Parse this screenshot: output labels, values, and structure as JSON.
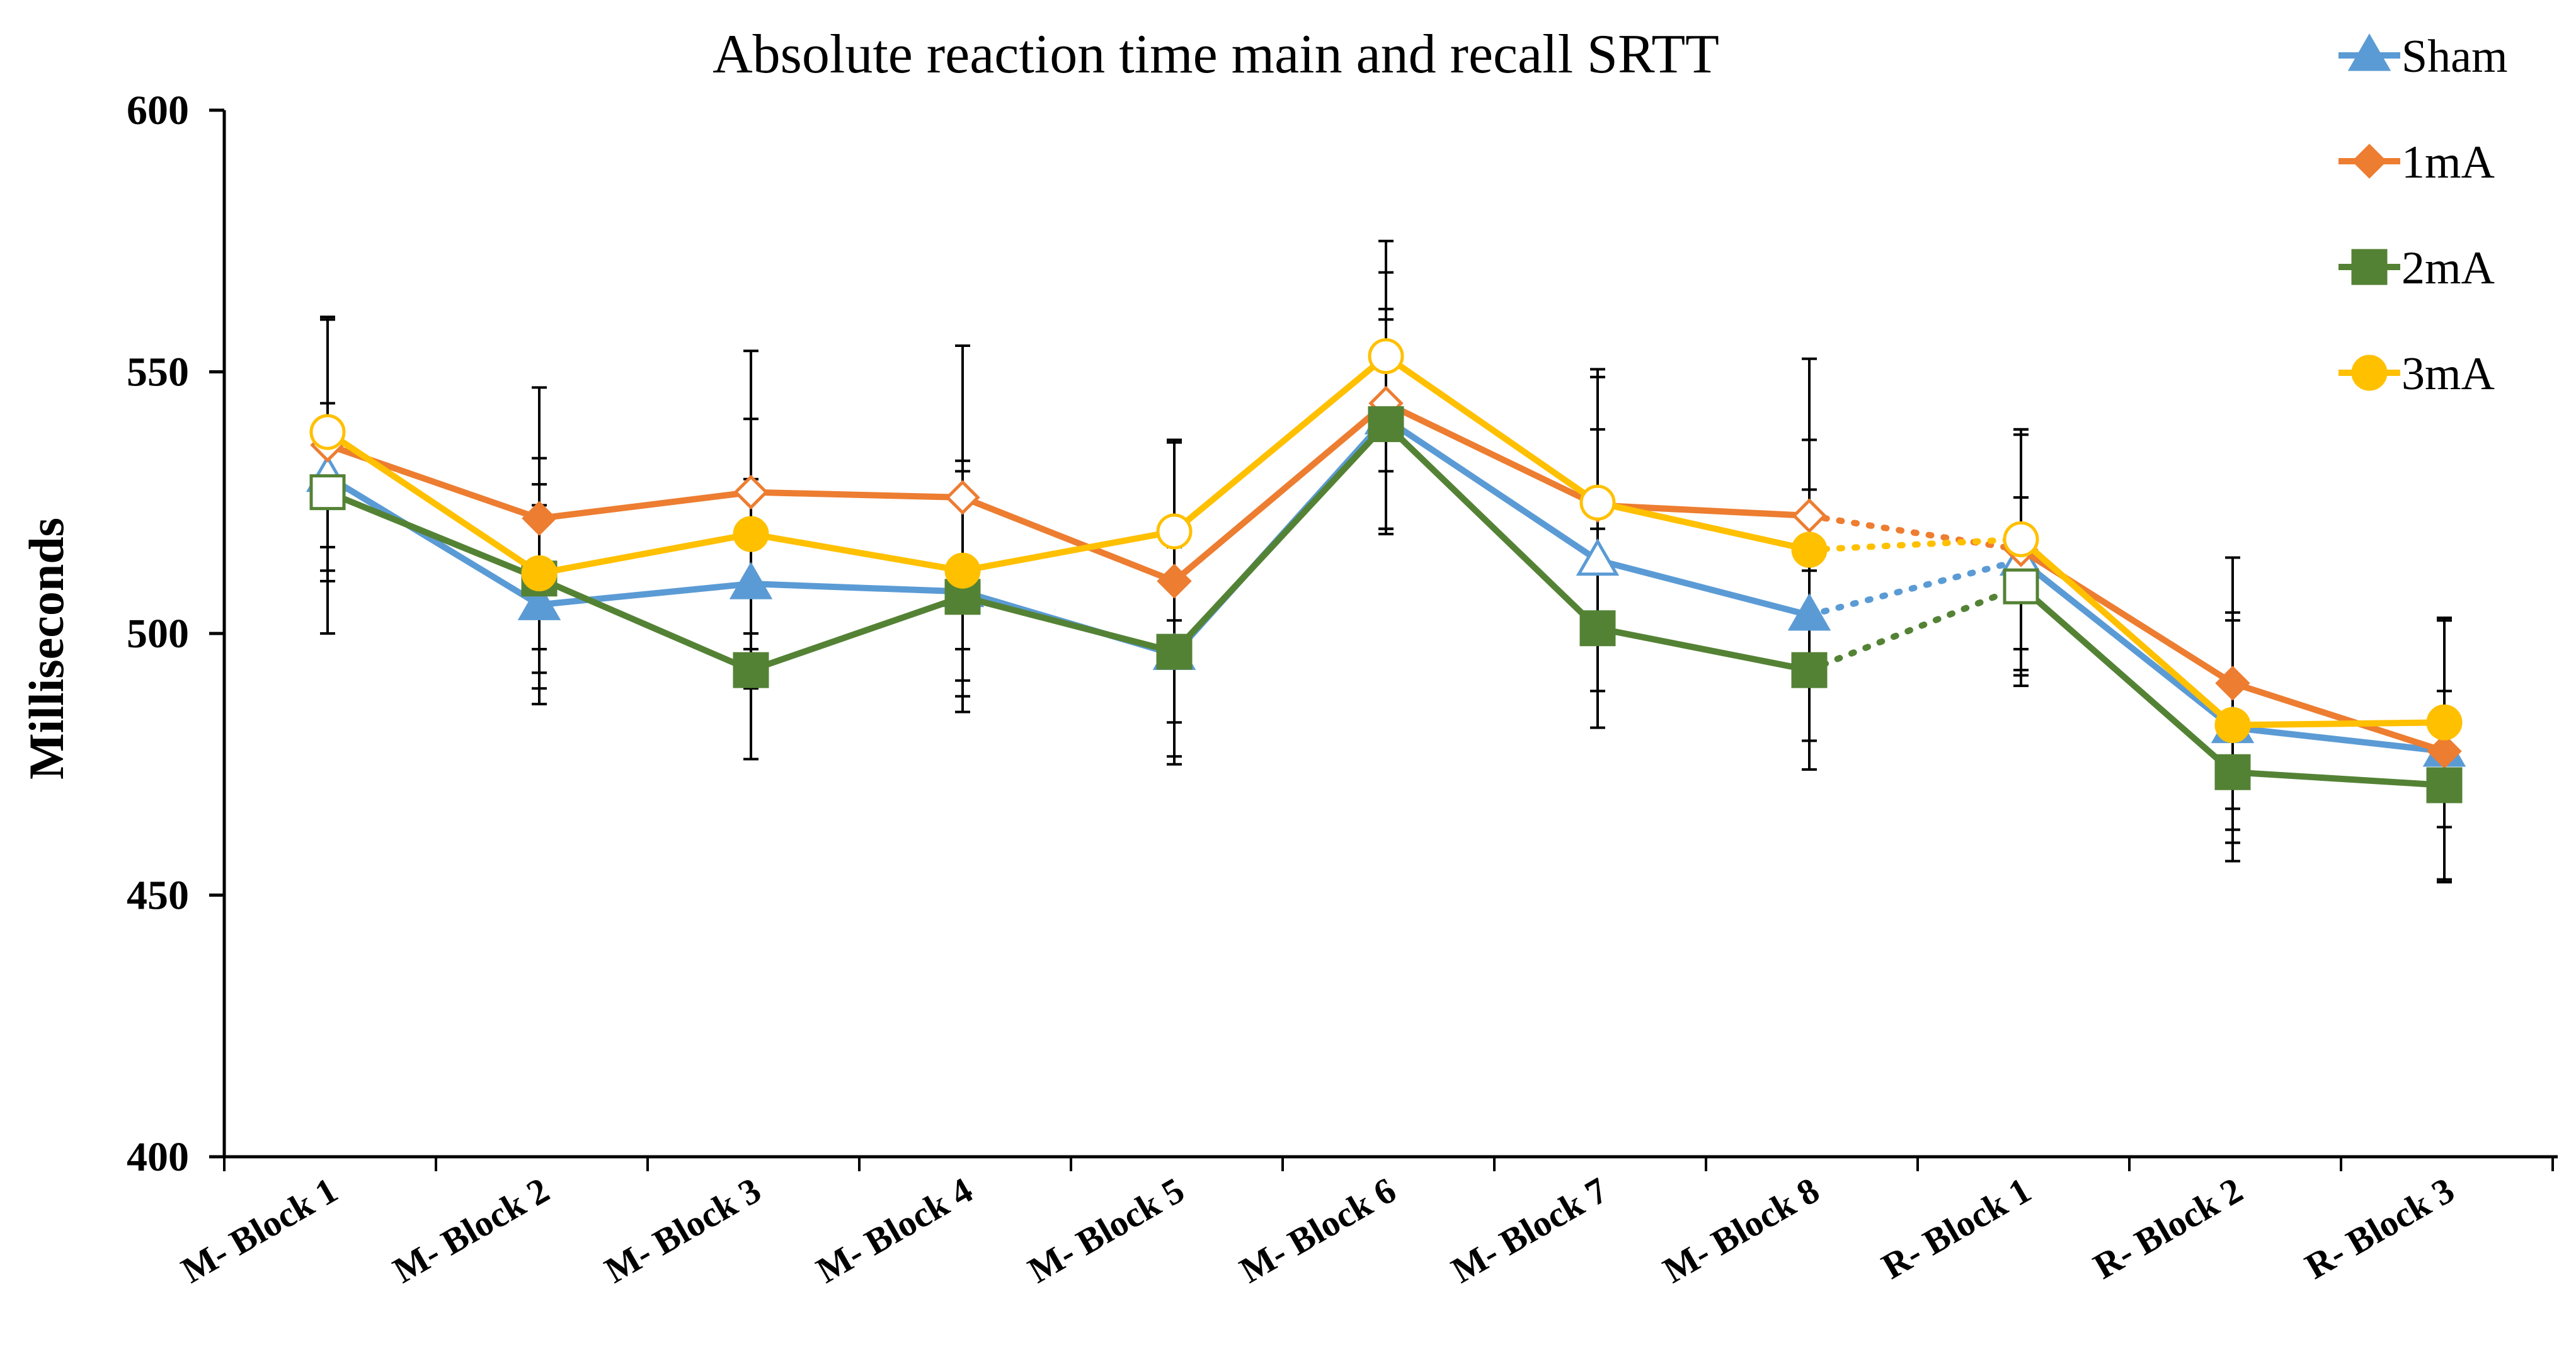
{
  "chart_data": {
    "type": "line",
    "title": "Absolute reaction time main and recall SRTT",
    "xlabel": "",
    "ylabel": "Milliseconds",
    "ylim": [
      400,
      600
    ],
    "yticks": [
      "400",
      "450",
      "500",
      "550",
      "600"
    ],
    "categories": [
      "M- Block 1",
      "M- Block 2",
      "M- Block 3",
      "M- Block 4",
      "M- Block 5",
      "M- Block 6",
      "M- Block 7",
      "M- Block 8",
      "R- Block 1",
      "R- Block 2",
      "R- Block 3"
    ],
    "grid": false,
    "legend_position": "top-right",
    "gap_after_category": "M- Block 8",
    "series": [
      {
        "name": "Sham",
        "color": "#5B9BD5",
        "marker": "triangle",
        "values": [
          530,
          505.5,
          509.5,
          508,
          496,
          541,
          514,
          503.5,
          514,
          482,
          477.5
        ],
        "error": [
          30,
          19,
          20,
          23,
          21,
          21,
          25,
          24,
          24,
          22,
          25
        ],
        "hollow_points": [
          0,
          6,
          8
        ]
      },
      {
        "name": "1mA",
        "color": "#ED7D31",
        "marker": "diamond",
        "values": [
          536,
          522,
          527,
          526,
          510,
          544,
          524.5,
          522.5,
          516,
          490.5,
          477.5
        ],
        "error": [
          24,
          25,
          27,
          29,
          27,
          25,
          26,
          30,
          23,
          24,
          25
        ],
        "hollow_points": [
          0,
          2,
          3,
          5,
          6,
          7,
          8
        ]
      },
      {
        "name": "2mA",
        "color": "#548235",
        "marker": "square",
        "values": [
          527,
          510.5,
          493,
          507,
          496.5,
          540,
          501,
          493,
          509,
          473.5,
          471
        ],
        "error": [
          17,
          18,
          17,
          19,
          20,
          20,
          19,
          19,
          17,
          17,
          18
        ],
        "hollow_points": [
          0,
          8
        ]
      },
      {
        "name": "3mA",
        "color": "#FFC000",
        "marker": "circle",
        "values": [
          538.5,
          511.5,
          519,
          512,
          519.5,
          553,
          525,
          516,
          518,
          482.5,
          483
        ],
        "error": [
          22,
          22,
          22,
          21,
          17,
          22,
          24,
          21,
          21,
          20,
          20
        ],
        "hollow_points": [
          0,
          4,
          5,
          6,
          8
        ]
      }
    ]
  }
}
